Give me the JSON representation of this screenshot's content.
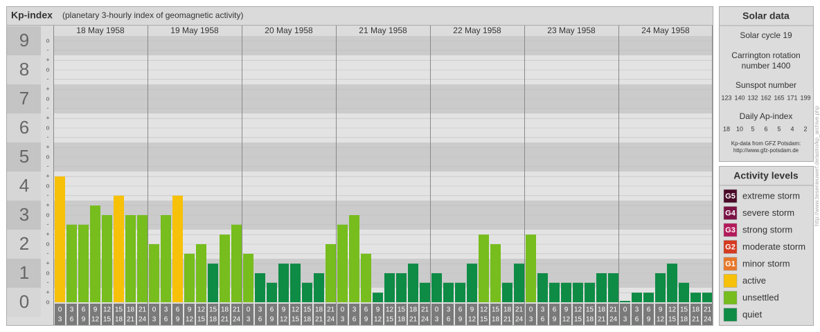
{
  "chart_data": {
    "type": "bar",
    "title": "Kp-index",
    "subtitle": "(planetary 3-hourly index of geomagnetic activity)",
    "ylim": [
      0,
      9
    ],
    "yticks": [
      0,
      1,
      2,
      3,
      4,
      5,
      6,
      7,
      8,
      9
    ],
    "minor_yticks": [
      {
        "value": 0,
        "label": "o"
      },
      {
        "value": 0.33,
        "label": "+"
      },
      {
        "value": 0.67,
        "label": "-"
      },
      {
        "value": 1,
        "label": "o"
      },
      {
        "value": 1.33,
        "label": "+"
      },
      {
        "value": 1.67,
        "label": "-"
      },
      {
        "value": 2,
        "label": "o"
      },
      {
        "value": 2.33,
        "label": "+"
      },
      {
        "value": 2.67,
        "label": "-"
      },
      {
        "value": 3,
        "label": "o"
      },
      {
        "value": 3.33,
        "label": "+"
      },
      {
        "value": 3.67,
        "label": "-"
      },
      {
        "value": 4,
        "label": "o"
      },
      {
        "value": 4.33,
        "label": "+"
      },
      {
        "value": 4.67,
        "label": "-"
      },
      {
        "value": 5,
        "label": "o"
      },
      {
        "value": 5.33,
        "label": "+"
      },
      {
        "value": 5.67,
        "label": "-"
      },
      {
        "value": 6,
        "label": "o"
      },
      {
        "value": 6.33,
        "label": "+"
      },
      {
        "value": 6.67,
        "label": "-"
      },
      {
        "value": 7,
        "label": "o"
      },
      {
        "value": 7.33,
        "label": "+"
      },
      {
        "value": 7.67,
        "label": "-"
      },
      {
        "value": 8,
        "label": "o"
      },
      {
        "value": 8.33,
        "label": "+"
      },
      {
        "value": 8.67,
        "label": "-"
      },
      {
        "value": 9,
        "label": "o"
      }
    ],
    "hours": [
      [
        "0",
        "3"
      ],
      [
        "3",
        "6"
      ],
      [
        "6",
        "9"
      ],
      [
        "9",
        "12"
      ],
      [
        "12",
        "15"
      ],
      [
        "15",
        "18"
      ],
      [
        "18",
        "21"
      ],
      [
        "21",
        "24"
      ]
    ],
    "days": [
      {
        "date": "18 May 1958",
        "values": [
          4.33,
          2.67,
          2.67,
          3.33,
          3,
          3.67,
          3,
          3
        ],
        "colors": [
          "#f7c10a",
          "#76bd1d",
          "#76bd1d",
          "#76bd1d",
          "#76bd1d",
          "#f7c10a",
          "#76bd1d",
          "#76bd1d"
        ]
      },
      {
        "date": "19 May 1958",
        "values": [
          2,
          3,
          3.67,
          1.67,
          2,
          1.33,
          2.33,
          2.67
        ],
        "colors": [
          "#76bd1d",
          "#76bd1d",
          "#f7c10a",
          "#76bd1d",
          "#76bd1d",
          "#0e8b45",
          "#76bd1d",
          "#76bd1d"
        ]
      },
      {
        "date": "20 May 1958",
        "values": [
          1.67,
          1,
          0.67,
          1.33,
          1.33,
          0.67,
          1,
          2
        ],
        "colors": [
          "#76bd1d",
          "#0e8b45",
          "#0e8b45",
          "#0e8b45",
          "#0e8b45",
          "#0e8b45",
          "#0e8b45",
          "#76bd1d"
        ]
      },
      {
        "date": "21 May 1958",
        "values": [
          2.67,
          3,
          1.67,
          0.33,
          1,
          1,
          1.33,
          0.67
        ],
        "colors": [
          "#76bd1d",
          "#76bd1d",
          "#76bd1d",
          "#0e8b45",
          "#0e8b45",
          "#0e8b45",
          "#0e8b45",
          "#0e8b45"
        ]
      },
      {
        "date": "22 May 1958",
        "values": [
          1,
          0.67,
          0.67,
          1.33,
          2.33,
          2,
          0.67,
          1.33
        ],
        "colors": [
          "#0e8b45",
          "#0e8b45",
          "#0e8b45",
          "#0e8b45",
          "#76bd1d",
          "#76bd1d",
          "#0e8b45",
          "#0e8b45"
        ]
      },
      {
        "date": "23 May 1958",
        "values": [
          2.33,
          1,
          0.67,
          0.67,
          0.67,
          0.67,
          1,
          1
        ],
        "colors": [
          "#76bd1d",
          "#0e8b45",
          "#0e8b45",
          "#0e8b45",
          "#0e8b45",
          "#0e8b45",
          "#0e8b45",
          "#0e8b45"
        ]
      },
      {
        "date": "24 May 1958",
        "values": [
          0,
          0.33,
          0.33,
          1,
          1.33,
          0.67,
          0.33,
          0.33
        ],
        "colors": [
          "#0e8b45",
          "#0e8b45",
          "#0e8b45",
          "#0e8b45",
          "#0e8b45",
          "#0e8b45",
          "#0e8b45",
          "#0e8b45"
        ]
      }
    ]
  },
  "solar": {
    "title": "Solar data",
    "cycle": "Solar cycle 19",
    "carrington": [
      "Carrington rotation",
      "number 1400"
    ],
    "sunspot_title": "Sunspot number",
    "sunspot": [
      123,
      140,
      132,
      162,
      165,
      171,
      199
    ],
    "ap_title": "Daily Ap-index",
    "ap": [
      18,
      10,
      5,
      6,
      5,
      4,
      2
    ],
    "source": [
      "Kp-data from GFZ Potsdam:",
      "http://www.gfz-potsdam.de"
    ]
  },
  "legend": {
    "title": "Activity levels",
    "items": [
      {
        "badge": "G5",
        "label": "extreme storm",
        "color": "#4a0a27"
      },
      {
        "badge": "G4",
        "label": "severe storm",
        "color": "#7a1244"
      },
      {
        "badge": "G3",
        "label": "strong storm",
        "color": "#b3195a"
      },
      {
        "badge": "G2",
        "label": "moderate storm",
        "color": "#d63a1f"
      },
      {
        "badge": "G1",
        "label": "minor storm",
        "color": "#e8782a"
      },
      {
        "label": "active",
        "color": "#f7c10a"
      },
      {
        "label": "unsettled",
        "color": "#76bd1d"
      },
      {
        "label": "quiet",
        "color": "#0e8b45"
      }
    ]
  },
  "watermark": "http://www.tiesenieuwerf.de/astro/kp_archive.php"
}
